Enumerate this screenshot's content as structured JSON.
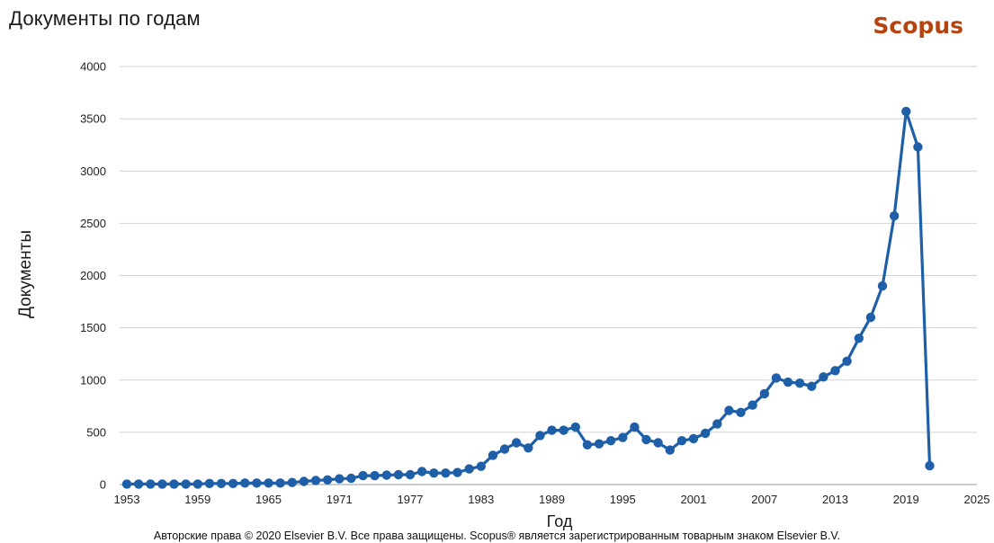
{
  "header": {
    "title": "Документы по годам",
    "brand": "Scopus"
  },
  "footer": {
    "copyright": "Авторские права © 2020 Elsevier B.V. Все права защищены. Scopus® является зарегистрированным товарным знаком Elsevier B.V."
  },
  "chart_data": {
    "type": "line",
    "title": "Документы по годам",
    "xlabel": "Год",
    "ylabel": "Документы",
    "xlim": [
      1953,
      2025
    ],
    "ylim": [
      0,
      4000
    ],
    "x_ticks": [
      "1953",
      "1959",
      "1965",
      "1971",
      "1977",
      "1983",
      "1989",
      "1995",
      "2001",
      "2007",
      "2013",
      "2019",
      "2025"
    ],
    "y_ticks": [
      "0",
      "500",
      "1000",
      "1500",
      "2000",
      "2500",
      "3000",
      "3500",
      "4000"
    ],
    "grid": "horizontal",
    "color": "#1f5fa8",
    "legend": "none",
    "x": [
      1953,
      1954,
      1955,
      1956,
      1957,
      1958,
      1959,
      1960,
      1961,
      1962,
      1963,
      1964,
      1965,
      1966,
      1967,
      1968,
      1969,
      1970,
      1971,
      1972,
      1973,
      1974,
      1975,
      1976,
      1977,
      1978,
      1979,
      1980,
      1981,
      1982,
      1983,
      1984,
      1985,
      1986,
      1987,
      1988,
      1989,
      1990,
      1991,
      1992,
      1993,
      1994,
      1995,
      1996,
      1997,
      1998,
      1999,
      2000,
      2001,
      2002,
      2003,
      2004,
      2005,
      2006,
      2007,
      2008,
      2009,
      2010,
      2011,
      2012,
      2013,
      2014,
      2015,
      2016,
      2017,
      2018,
      2019,
      2020,
      2021
    ],
    "values": [
      5,
      5,
      5,
      5,
      5,
      5,
      5,
      10,
      10,
      10,
      15,
      15,
      15,
      15,
      20,
      30,
      40,
      45,
      55,
      60,
      85,
      85,
      90,
      95,
      95,
      125,
      110,
      110,
      115,
      150,
      175,
      280,
      340,
      400,
      350,
      470,
      520,
      520,
      550,
      380,
      390,
      420,
      450,
      550,
      430,
      400,
      330,
      420,
      440,
      490,
      580,
      710,
      690,
      760,
      870,
      1020,
      980,
      970,
      940,
      1030,
      1090,
      1180,
      1400,
      1600,
      1900,
      2570,
      3570,
      3230,
      180
    ]
  }
}
